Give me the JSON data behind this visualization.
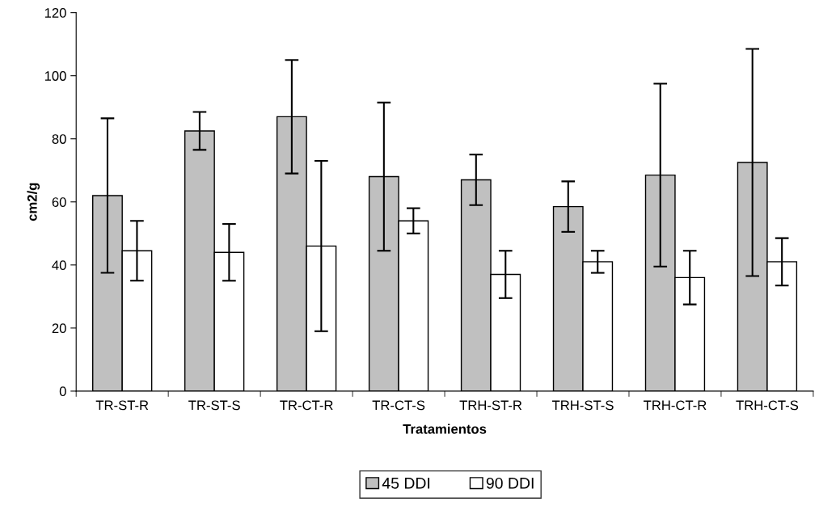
{
  "chart_data": {
    "type": "bar",
    "xlabel": "Tratamientos",
    "ylabel": "cm2/g",
    "categories": [
      "TR-ST-R",
      "TR-ST-S",
      "TR-CT-R",
      "TR-CT-S",
      "TRH-ST-R",
      "TRH-ST-S",
      "TRH-CT-R",
      "TRH-CT-S"
    ],
    "series": [
      {
        "name": "45 DDI",
        "color": "#c0c0c0",
        "values": [
          62,
          82.5,
          87,
          68,
          67,
          58.5,
          68.5,
          72.5
        ],
        "errors": [
          24.5,
          6,
          18,
          23.5,
          8,
          8,
          29,
          36
        ]
      },
      {
        "name": "90 DDI",
        "color": "#ffffff",
        "values": [
          44.5,
          44,
          46,
          54,
          37,
          41,
          36,
          41
        ],
        "errors": [
          9.5,
          9,
          27,
          4,
          7.5,
          3.5,
          8.5,
          7.5
        ]
      }
    ],
    "ylim": [
      0,
      120
    ],
    "yticks": [
      0,
      20,
      40,
      60,
      80,
      100,
      120
    ],
    "grid": false,
    "legend": "bottom"
  }
}
